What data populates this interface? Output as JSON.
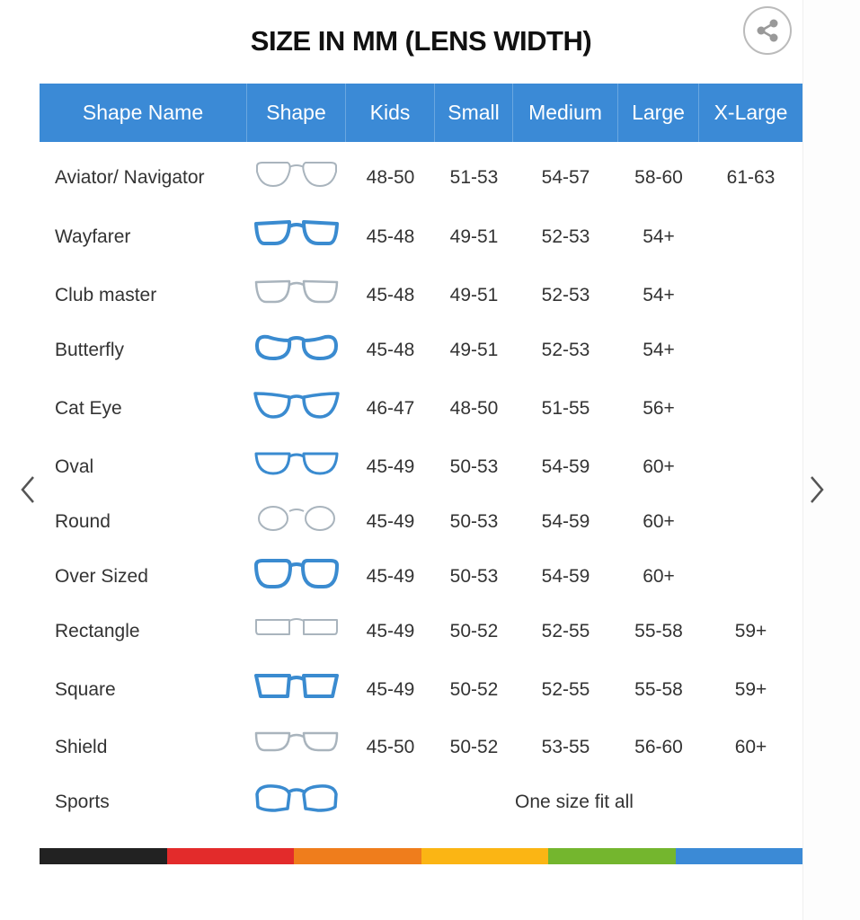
{
  "title": "SIZE IN MM (LENS WIDTH)",
  "share_icon": "share-icon",
  "columns": [
    "Shape Name",
    "Shape",
    "Kids",
    "Small",
    "Medium",
    "Large",
    "X-Large"
  ],
  "rows": [
    {
      "name": "Aviator/ Navigator",
      "shape": "aviator",
      "kids": "48-50",
      "small": "51-53",
      "medium": "54-57",
      "large": "58-60",
      "xlarge": "61-63"
    },
    {
      "name": "Wayfarer",
      "shape": "wayfarer",
      "kids": "45-48",
      "small": "49-51",
      "medium": "52-53",
      "large": "54+",
      "xlarge": ""
    },
    {
      "name": "Club master",
      "shape": "clubmaster",
      "kids": "45-48",
      "small": "49-51",
      "medium": "52-53",
      "large": "54+",
      "xlarge": ""
    },
    {
      "name": "Butterfly",
      "shape": "butterfly",
      "kids": "45-48",
      "small": "49-51",
      "medium": "52-53",
      "large": "54+",
      "xlarge": ""
    },
    {
      "name": "Cat Eye",
      "shape": "cateye",
      "kids": "46-47",
      "small": "48-50",
      "medium": "51-55",
      "large": "56+",
      "xlarge": ""
    },
    {
      "name": "Oval",
      "shape": "oval",
      "kids": "45-49",
      "small": "50-53",
      "medium": "54-59",
      "large": "60+",
      "xlarge": ""
    },
    {
      "name": "Round",
      "shape": "round",
      "kids": "45-49",
      "small": "50-53",
      "medium": "54-59",
      "large": "60+",
      "xlarge": ""
    },
    {
      "name": "Over Sized",
      "shape": "oversized",
      "kids": "45-49",
      "small": "50-53",
      "medium": "54-59",
      "large": "60+",
      "xlarge": ""
    },
    {
      "name": "Rectangle",
      "shape": "rectangle",
      "kids": "45-49",
      "small": "50-52",
      "medium": "52-55",
      "large": "55-58",
      "xlarge": "59+"
    },
    {
      "name": "Square",
      "shape": "square",
      "kids": "45-49",
      "small": "50-52",
      "medium": "52-55",
      "large": "55-58",
      "xlarge": "59+"
    },
    {
      "name": "Shield",
      "shape": "shield",
      "kids": "45-50",
      "small": "50-52",
      "medium": "53-55",
      "large": "56-60",
      "xlarge": "60+"
    }
  ],
  "sports": {
    "name": "Sports",
    "shape": "sports",
    "note": "One size fit all"
  },
  "colors": {
    "header": "#3b8ad6",
    "frame": "#3a8bd0",
    "frame_light": "#a9b4bd",
    "bar": [
      "#222222",
      "#e32b2b",
      "#ef7d1c",
      "#fbb514",
      "#74b62e",
      "#3b8ad6"
    ]
  },
  "nav": {
    "prev_icon": "chevron-left-icon",
    "next_icon": "chevron-right-icon"
  }
}
